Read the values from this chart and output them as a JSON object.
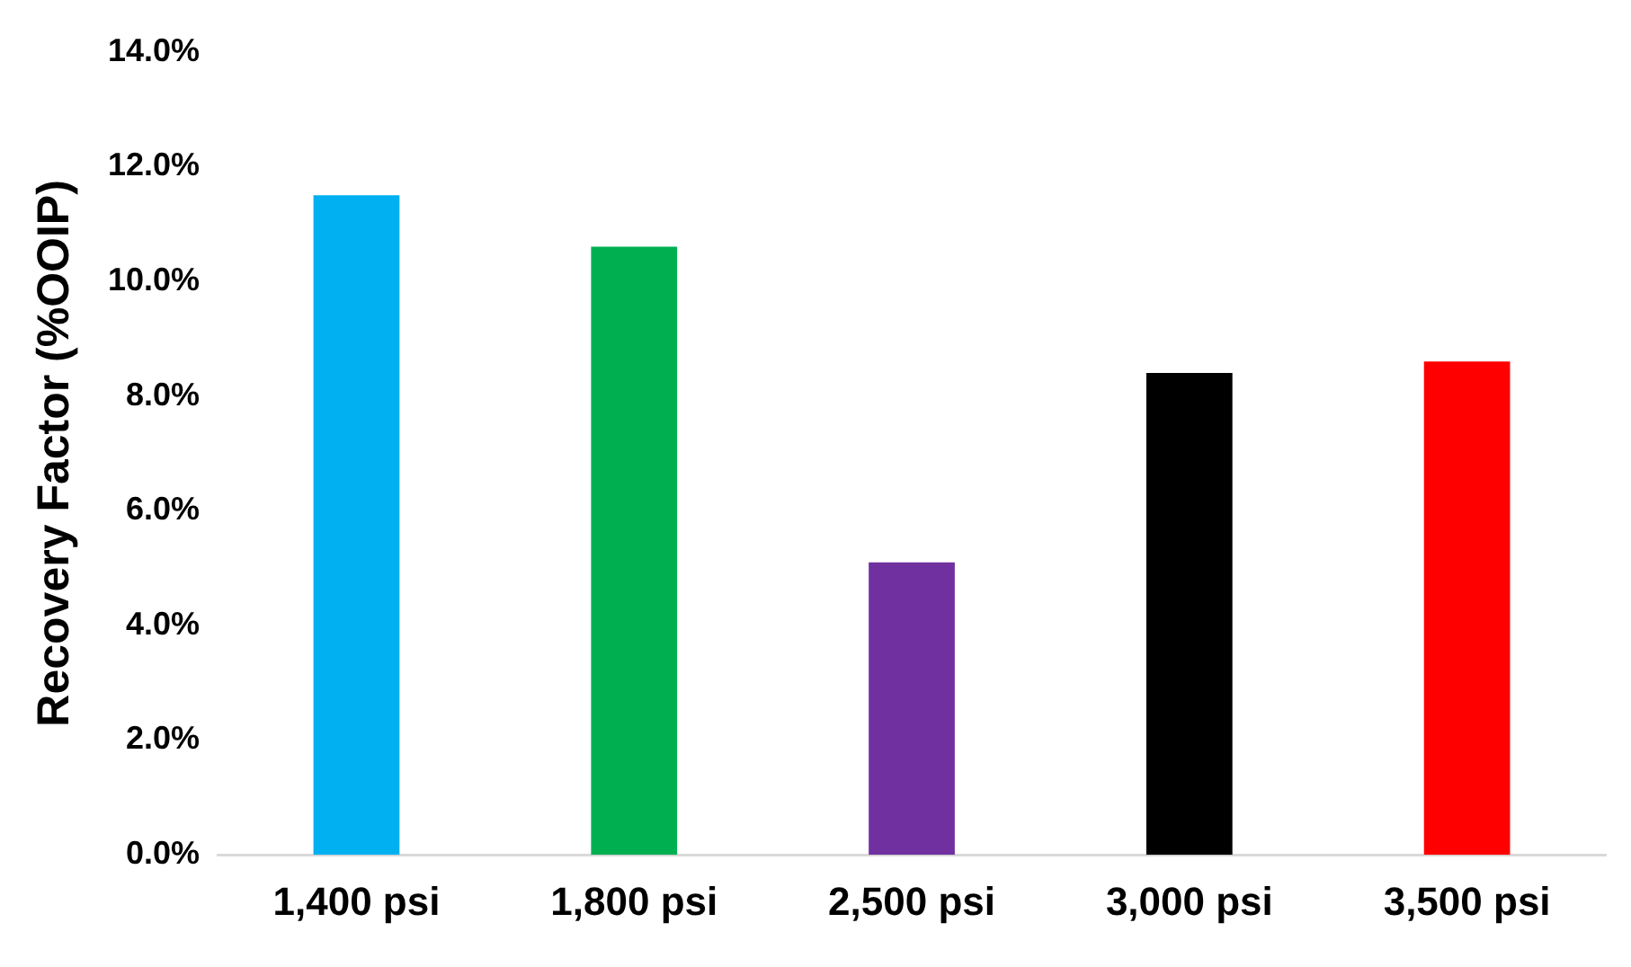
{
  "chart_data": {
    "type": "bar",
    "ylabel": "Recovery Factor (%OOIP)",
    "categories": [
      "1,400 psi",
      "1,800 psi",
      "2,500 psi",
      "3,000 psi",
      "3,500 psi"
    ],
    "values": [
      11.5,
      10.6,
      5.1,
      8.4,
      8.6
    ],
    "colors": [
      "#00b0f0",
      "#00b050",
      "#7030a0",
      "#000000",
      "#ff0000"
    ],
    "ylim": [
      0,
      14
    ],
    "yticks": [
      {
        "value": 0,
        "label": "0.0%"
      },
      {
        "value": 2,
        "label": "2.0%"
      },
      {
        "value": 4,
        "label": "4.0%"
      },
      {
        "value": 6,
        "label": "6.0%"
      },
      {
        "value": 8,
        "label": "8.0%"
      },
      {
        "value": 10,
        "label": "10.0%"
      },
      {
        "value": 12,
        "label": "12.0%"
      },
      {
        "value": 14,
        "label": "14.0%"
      }
    ],
    "grid": false,
    "legend": false
  }
}
